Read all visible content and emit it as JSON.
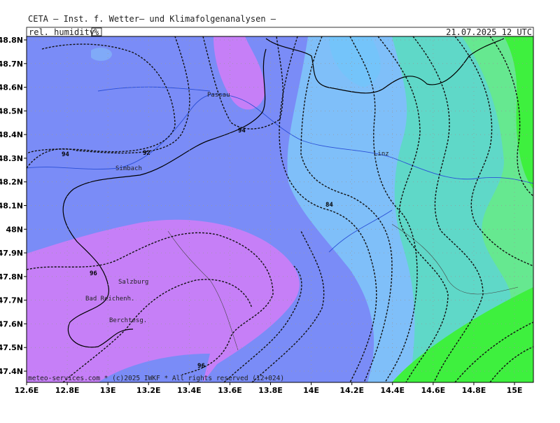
{
  "header": {
    "title": "CETA — Inst. f. Wetter— und Klimafolgenanalysen —",
    "variable": "rel._humidity",
    "unit": "%",
    "datetime": "21.07.2025 12 UTC"
  },
  "axes": {
    "x_labels": [
      "12.6E",
      "12.8E",
      "13E",
      "13.2E",
      "13.4E",
      "13.6E",
      "13.8E",
      "14E",
      "14.2E",
      "14.4E",
      "14.6E",
      "14.8E",
      "15E"
    ],
    "y_labels": [
      "48.8N",
      "48.7N",
      "48.6N",
      "48.5N",
      "48.4N",
      "48.3N",
      "48.2N",
      "48.1N",
      "48N",
      "47.9N",
      "47.8N",
      "47.7N",
      "47.6N",
      "47.5N",
      "47.4N"
    ]
  },
  "places": [
    "Passau",
    "Simbach",
    "Linz",
    "Salzburg",
    "Bad Reichenh.",
    "Berchtesg."
  ],
  "contour_labels": [
    "94",
    "92",
    "94",
    "84",
    "96",
    "96"
  ],
  "footer": "meteo-services.com * (c)2025 IWKF * All rights reserved (12+024)"
}
